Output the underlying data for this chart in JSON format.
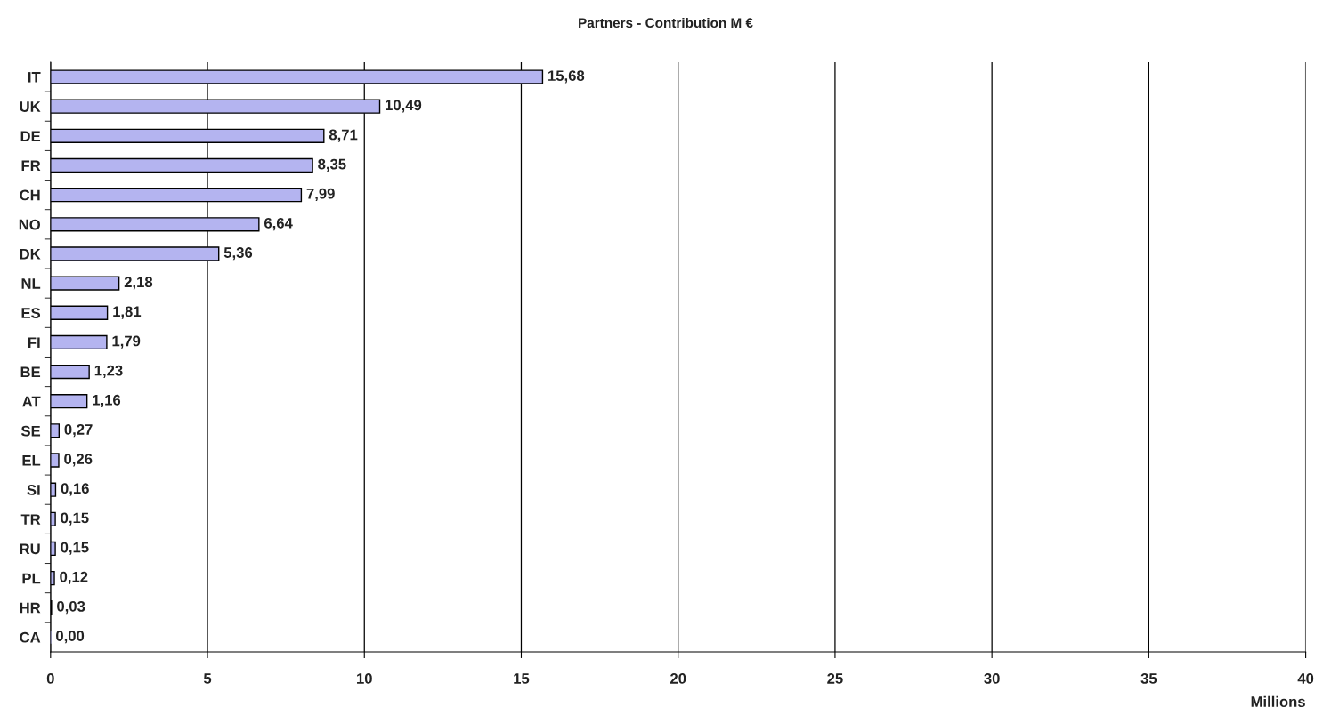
{
  "chart_data": {
    "type": "bar",
    "orientation": "horizontal",
    "title": "Partners - Contribution M €",
    "xlabel": "Millions",
    "categories": [
      "IT",
      "UK",
      "DE",
      "FR",
      "CH",
      "NO",
      "DK",
      "NL",
      "ES",
      "FI",
      "BE",
      "AT",
      "SE",
      "EL",
      "SI",
      "TR",
      "RU",
      "PL",
      "HR",
      "CA"
    ],
    "values": [
      15.68,
      10.49,
      8.71,
      8.35,
      7.99,
      6.64,
      5.36,
      2.18,
      1.81,
      1.79,
      1.23,
      1.16,
      0.27,
      0.26,
      0.16,
      0.15,
      0.15,
      0.12,
      0.03,
      0.0
    ],
    "value_labels": [
      "15,68",
      "10,49",
      "8,71",
      "8,35",
      "7,99",
      "6,64",
      "5,36",
      "2,18",
      "1,81",
      "1,79",
      "1,23",
      "1,16",
      "0,27",
      "0,26",
      "0,16",
      "0,15",
      "0,15",
      "0,12",
      "0,03",
      "0,00"
    ],
    "color": "#b4b4f0",
    "xlim": [
      0,
      40
    ],
    "xticks": [
      0,
      5,
      10,
      15,
      20,
      25,
      30,
      35,
      40
    ],
    "grid": "x",
    "legend": false
  }
}
